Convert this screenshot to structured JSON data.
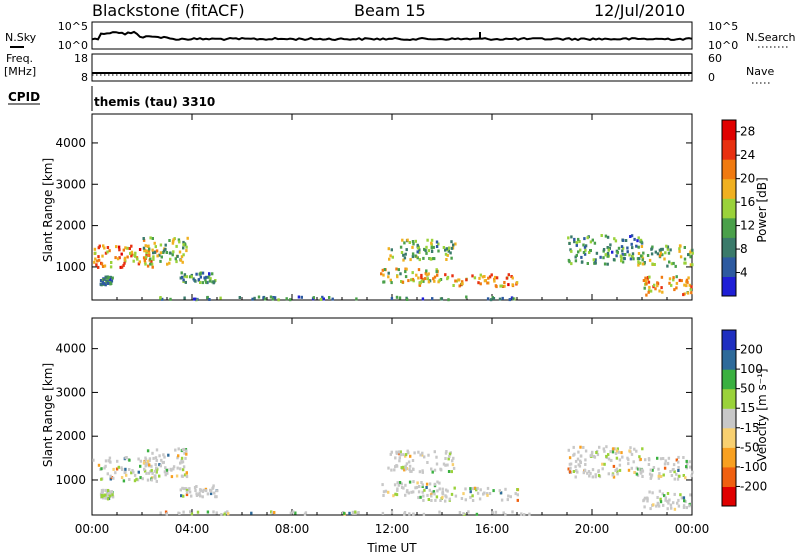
{
  "header": {
    "title": "Blackstone (fitACF)",
    "beam": "Beam 15",
    "date": "12/Jul/2010"
  },
  "side_labels": {
    "nsky": "N.Sky",
    "nsearch": "N.Search",
    "freq": "Freq.",
    "mhz": "[MHz]",
    "nave": "Nave",
    "cpid": "CPID"
  },
  "cpid_value": "themis (tau) 3310",
  "noise_panel": {
    "left_ticks": [
      "10^5",
      "10^0"
    ],
    "right_ticks": [
      "10^5",
      "10^0"
    ]
  },
  "freq_panel": {
    "left_ticks": [
      "18",
      "8"
    ],
    "right_ticks": [
      "60",
      "0"
    ]
  },
  "colors": {
    "scale_power": [
      "#1f1fd6",
      "#2d5aa0",
      "#3a7a6a",
      "#4aa04a",
      "#9ad23a",
      "#f0b020",
      "#f07a10",
      "#e83010",
      "#e00000"
    ],
    "scale_velocity": [
      "#e00000",
      "#f06010",
      "#f8a020",
      "#f8d070",
      "#c8c8c8",
      "#9ad23a",
      "#3ab040",
      "#2d6a9a",
      "#1f2fc0"
    ]
  },
  "chart_data": [
    {
      "type": "heatmap",
      "name": "power",
      "xlabel": "",
      "ylabel": "Slant Range [km]",
      "x_ticks": [
        "00:00",
        "04:00",
        "08:00",
        "12:00",
        "16:00",
        "20:00",
        "00:00"
      ],
      "y_ticks": [
        "1000",
        "2000",
        "3000",
        "4000"
      ],
      "ylim": [
        200,
        4700
      ],
      "xlim_hours": [
        0,
        24
      ],
      "colorbar_label": "Power [dB]",
      "colorbar_ticks": [
        "4",
        "8",
        "12",
        "16",
        "20",
        "24",
        "28"
      ],
      "colorbar_range": [
        0,
        30
      ],
      "regions": [
        {
          "t0": 0.0,
          "t1": 2.6,
          "r0": 1000,
          "r1": 1550,
          "level": 0.7
        },
        {
          "t0": 2.0,
          "t1": 3.8,
          "r0": 1100,
          "r1": 1750,
          "level": 0.45
        },
        {
          "t0": 3.5,
          "t1": 5.0,
          "r0": 650,
          "r1": 900,
          "level": 0.3
        },
        {
          "t0": 0.3,
          "t1": 0.8,
          "r0": 600,
          "r1": 800,
          "level": 0.3
        },
        {
          "t0": 11.8,
          "t1": 14.5,
          "r0": 1200,
          "r1": 1700,
          "level": 0.4
        },
        {
          "t0": 11.5,
          "t1": 14.0,
          "r0": 650,
          "r1": 1000,
          "level": 0.55
        },
        {
          "t0": 13.0,
          "t1": 17.0,
          "r0": 550,
          "r1": 850,
          "level": 0.7
        },
        {
          "t0": 2.5,
          "t1": 17.5,
          "r0": 240,
          "r1": 310,
          "level": 0.25
        },
        {
          "t0": 19.0,
          "t1": 22.0,
          "r0": 1100,
          "r1": 1800,
          "level": 0.3
        },
        {
          "t0": 21.8,
          "t1": 24.0,
          "r0": 1050,
          "r1": 1550,
          "level": 0.45
        },
        {
          "t0": 22.0,
          "t1": 24.0,
          "r0": 350,
          "r1": 800,
          "level": 0.65
        }
      ]
    },
    {
      "type": "heatmap",
      "name": "velocity",
      "xlabel": "Time UT",
      "ylabel": "Slant Range [km]",
      "x_ticks": [
        "00:00",
        "04:00",
        "08:00",
        "12:00",
        "16:00",
        "20:00",
        "00:00"
      ],
      "y_ticks": [
        "1000",
        "2000",
        "3000",
        "4000"
      ],
      "ylim": [
        200,
        4700
      ],
      "xlim_hours": [
        0,
        24
      ],
      "colorbar_label": "Velocity [m s⁻¹]",
      "colorbar_ticks": [
        "-200",
        "-100",
        "-50",
        "-15",
        "15",
        "50",
        "100",
        "200"
      ],
      "colorbar_range": [
        -250,
        250
      ],
      "regions": [
        {
          "t0": 0.0,
          "t1": 2.6,
          "r0": 1000,
          "r1": 1550,
          "level": 0.5
        },
        {
          "t0": 2.0,
          "t1": 3.8,
          "r0": 1100,
          "r1": 1750,
          "level": 0.5
        },
        {
          "t0": 3.5,
          "t1": 5.0,
          "r0": 650,
          "r1": 900,
          "level": 0.5
        },
        {
          "t0": 0.3,
          "t1": 0.8,
          "r0": 600,
          "r1": 800,
          "level": 0.5
        },
        {
          "t0": 11.8,
          "t1": 14.5,
          "r0": 1200,
          "r1": 1700,
          "level": 0.5
        },
        {
          "t0": 11.5,
          "t1": 14.0,
          "r0": 650,
          "r1": 1000,
          "level": 0.5
        },
        {
          "t0": 13.0,
          "t1": 17.0,
          "r0": 550,
          "r1": 850,
          "level": 0.5
        },
        {
          "t0": 2.5,
          "t1": 17.5,
          "r0": 240,
          "r1": 310,
          "level": 0.35
        },
        {
          "t0": 19.0,
          "t1": 22.0,
          "r0": 1100,
          "r1": 1800,
          "level": 0.5
        },
        {
          "t0": 21.8,
          "t1": 24.0,
          "r0": 1050,
          "r1": 1550,
          "level": 0.5
        },
        {
          "t0": 22.0,
          "t1": 24.0,
          "r0": 350,
          "r1": 800,
          "level": 0.5
        }
      ]
    }
  ]
}
